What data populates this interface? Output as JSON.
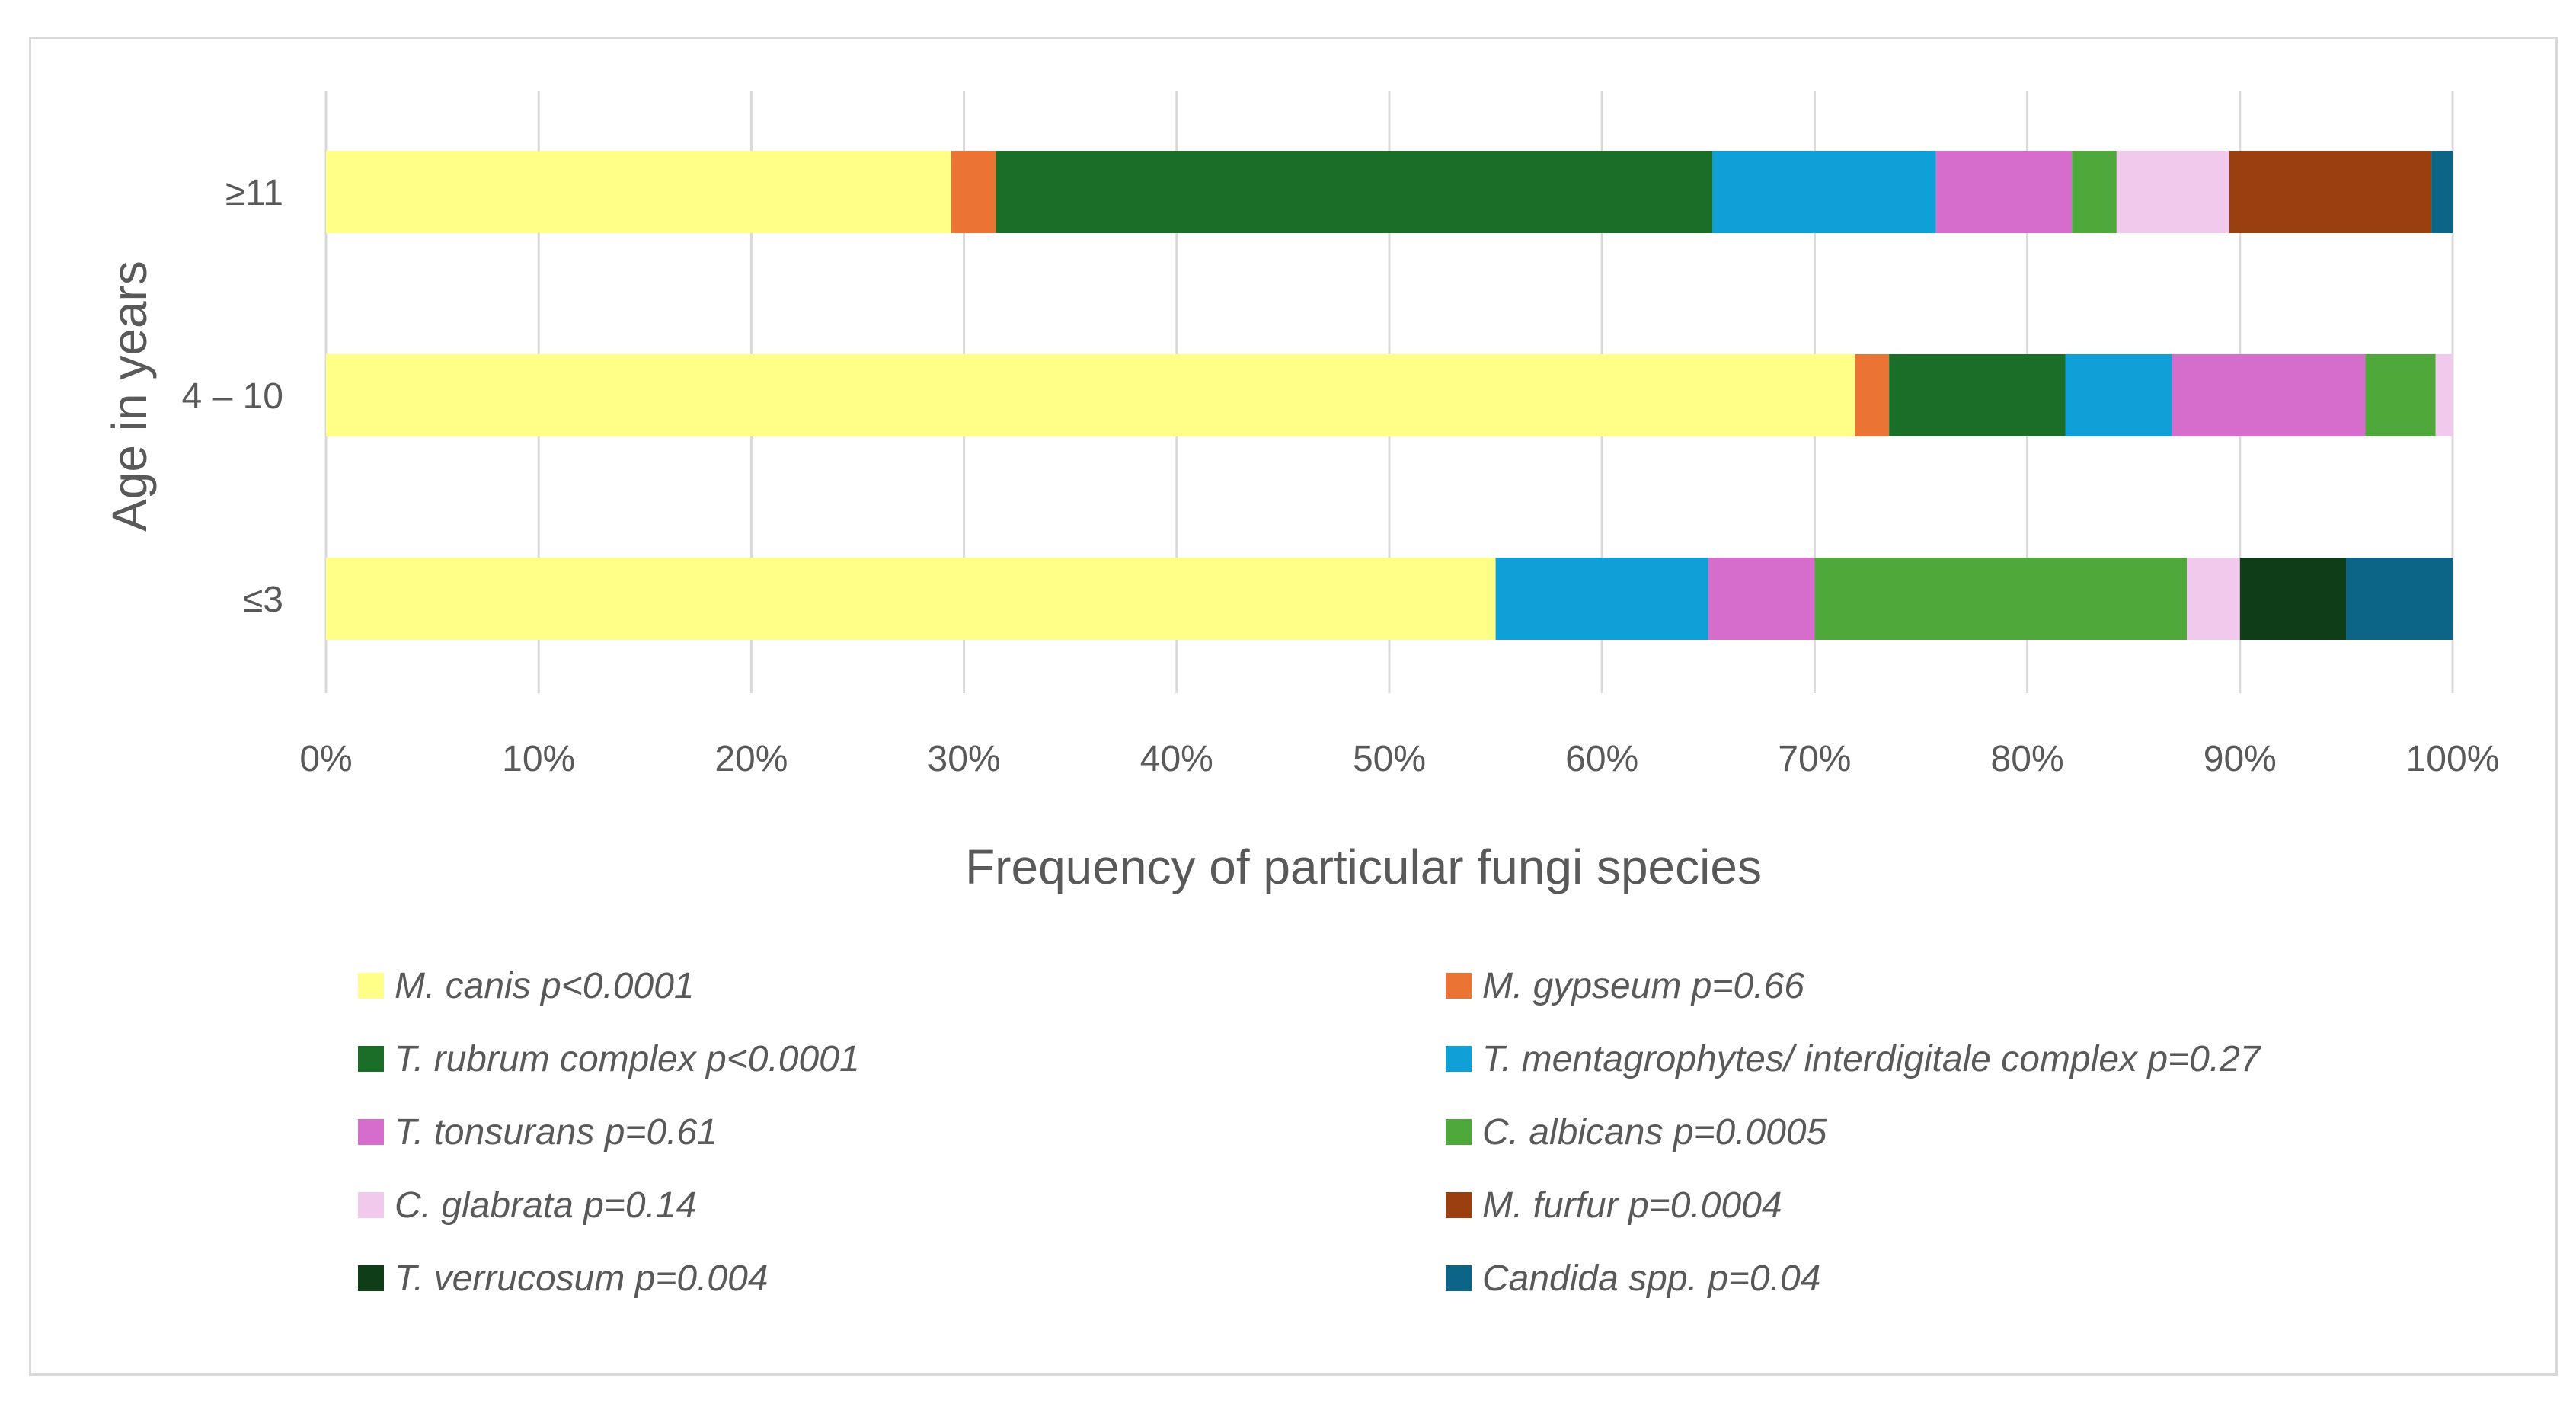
{
  "chart_data": {
    "type": "bar",
    "orientation": "horizontal",
    "stacked": "percent",
    "title": "",
    "xlabel": "Frequency of particular fungi species",
    "ylabel": "Age in years",
    "xlim": [
      0,
      100
    ],
    "x_ticks": [
      "0%",
      "10%",
      "20%",
      "30%",
      "40%",
      "50%",
      "60%",
      "70%",
      "80%",
      "90%",
      "100%"
    ],
    "categories": [
      "≥11",
      "4 – 10",
      "≤3"
    ],
    "grid": true,
    "legend_position": "bottom",
    "series": [
      {
        "name": "M. canis p<0.0001",
        "color": "#ffff88",
        "values": [
          29.4,
          71.9,
          55.0
        ]
      },
      {
        "name": "M. gypseum p=0.66",
        "color": "#eb7434",
        "values": [
          2.1,
          1.6,
          0
        ]
      },
      {
        "name": "T. rubrum complex p<0.0001",
        "color": "#1b6e27",
        "values": [
          33.7,
          8.3,
          0
        ]
      },
      {
        "name": "T. mentagrophytes/ interdigitale complex p=0.27",
        "color": "#10a0d8",
        "values": [
          10.5,
          5.0,
          10.0
        ]
      },
      {
        "name": "T. tonsurans p=0.61",
        "color": "#d66ccc",
        "values": [
          6.4,
          9.1,
          5.0
        ]
      },
      {
        "name": "C. albicans p=0.0005",
        "color": "#4ea83a",
        "values": [
          2.1,
          3.3,
          17.5
        ]
      },
      {
        "name": "C. glabrata p=0.14",
        "color": "#f0c9ec",
        "values": [
          5.3,
          0.8,
          2.5
        ]
      },
      {
        "name": "M. furfur p=0.0004",
        "color": "#9a3f10",
        "values": [
          9.5,
          0,
          0
        ]
      },
      {
        "name": "T. verrucosum p=0.004",
        "color": "#0f3d18",
        "values": [
          0,
          0,
          5.0
        ]
      },
      {
        "name": "Candida spp. p=0.04",
        "color": "#0c6587",
        "values": [
          1.0,
          0,
          5.0
        ]
      }
    ]
  }
}
